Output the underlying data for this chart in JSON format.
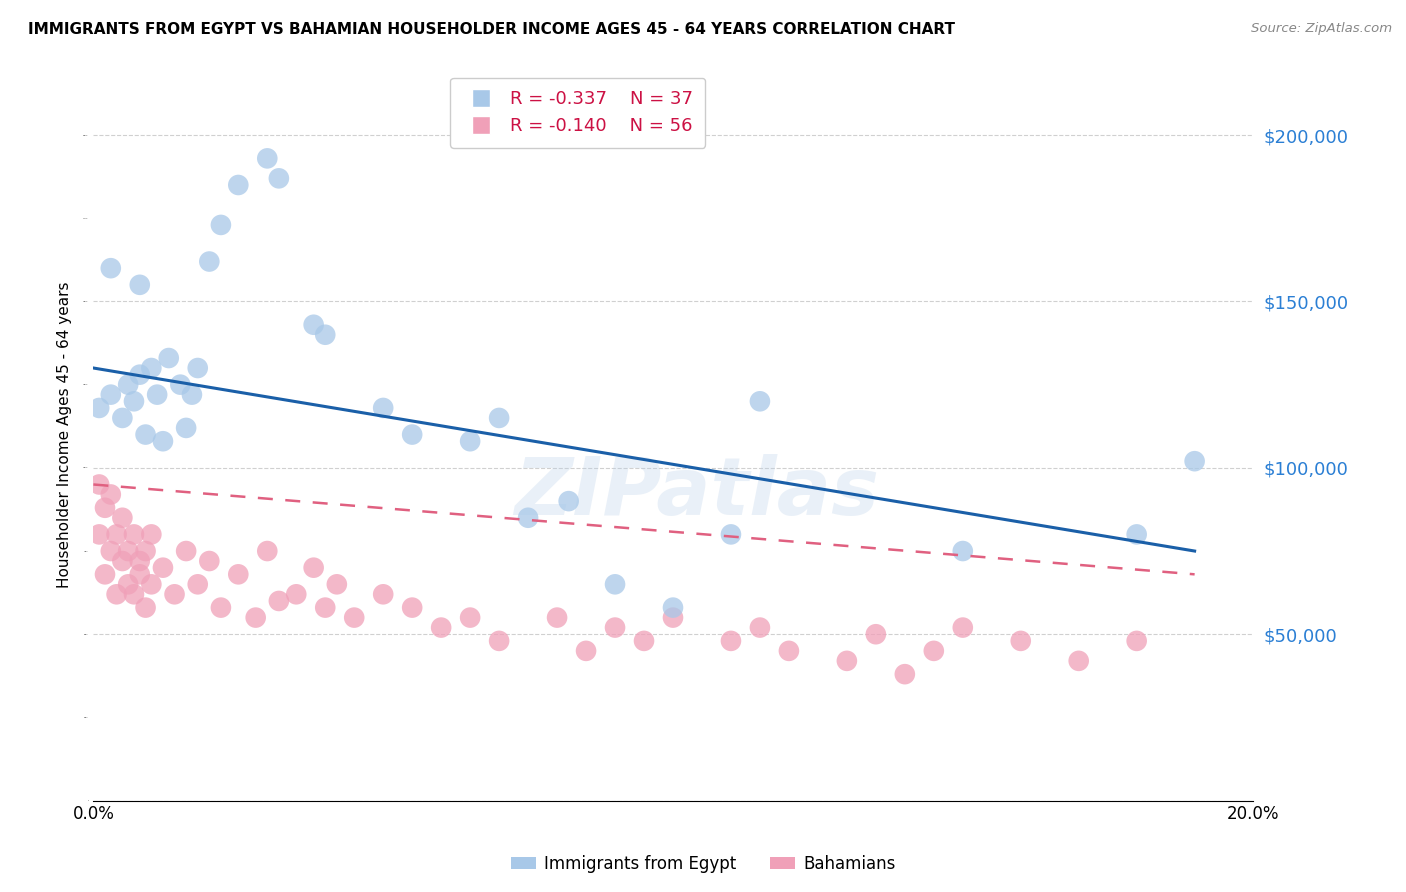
{
  "title": "IMMIGRANTS FROM EGYPT VS BAHAMIAN HOUSEHOLDER INCOME AGES 45 - 64 YEARS CORRELATION CHART",
  "source": "Source: ZipAtlas.com",
  "ylabel": "Householder Income Ages 45 - 64 years",
  "xlim": [
    0.0,
    0.2
  ],
  "ylim": [
    0,
    220000
  ],
  "yticks": [
    0,
    50000,
    100000,
    150000,
    200000
  ],
  "ytick_labels": [
    "",
    "$50,000",
    "$100,000",
    "$150,000",
    "$200,000"
  ],
  "xticks": [
    0.0,
    0.02,
    0.04,
    0.06,
    0.08,
    0.1,
    0.12,
    0.14,
    0.16,
    0.18,
    0.2
  ],
  "xtick_labels": [
    "0.0%",
    "",
    "",
    "",
    "",
    "",
    "",
    "",
    "",
    "",
    "20.0%"
  ],
  "egypt_color": "#a8c8e8",
  "bahamas_color": "#f0a0b8",
  "egypt_line_color": "#1a5fa8",
  "bahamas_line_color": "#e06080",
  "right_axis_color": "#2b7fd4",
  "egypt_r": "-0.337",
  "egypt_n": "37",
  "bahamas_r": "-0.140",
  "bahamas_n": "56",
  "watermark": "ZIPatlas",
  "egypt_x": [
    0.001,
    0.003,
    0.005,
    0.006,
    0.007,
    0.008,
    0.009,
    0.01,
    0.011,
    0.012,
    0.013,
    0.015,
    0.016,
    0.017,
    0.018,
    0.02,
    0.022,
    0.025,
    0.03,
    0.032,
    0.038,
    0.04,
    0.05,
    0.055,
    0.065,
    0.07,
    0.075,
    0.082,
    0.09,
    0.1,
    0.11,
    0.115,
    0.15,
    0.18,
    0.19,
    0.003,
    0.008
  ],
  "egypt_y": [
    118000,
    122000,
    115000,
    125000,
    120000,
    128000,
    110000,
    130000,
    122000,
    108000,
    133000,
    125000,
    112000,
    122000,
    130000,
    162000,
    173000,
    185000,
    193000,
    187000,
    143000,
    140000,
    118000,
    110000,
    108000,
    115000,
    85000,
    90000,
    65000,
    58000,
    80000,
    120000,
    75000,
    80000,
    102000,
    160000,
    155000
  ],
  "bahamas_x": [
    0.001,
    0.001,
    0.002,
    0.002,
    0.003,
    0.003,
    0.004,
    0.004,
    0.005,
    0.005,
    0.006,
    0.006,
    0.007,
    0.007,
    0.008,
    0.008,
    0.009,
    0.009,
    0.01,
    0.01,
    0.012,
    0.014,
    0.016,
    0.018,
    0.02,
    0.022,
    0.025,
    0.028,
    0.03,
    0.032,
    0.035,
    0.038,
    0.04,
    0.042,
    0.045,
    0.05,
    0.055,
    0.06,
    0.065,
    0.07,
    0.08,
    0.085,
    0.09,
    0.095,
    0.1,
    0.11,
    0.115,
    0.12,
    0.13,
    0.135,
    0.14,
    0.145,
    0.15,
    0.16,
    0.17,
    0.18
  ],
  "bahamas_y": [
    95000,
    80000,
    68000,
    88000,
    75000,
    92000,
    62000,
    80000,
    72000,
    85000,
    65000,
    75000,
    80000,
    62000,
    72000,
    68000,
    58000,
    75000,
    65000,
    80000,
    70000,
    62000,
    75000,
    65000,
    72000,
    58000,
    68000,
    55000,
    75000,
    60000,
    62000,
    70000,
    58000,
    65000,
    55000,
    62000,
    58000,
    52000,
    55000,
    48000,
    55000,
    45000,
    52000,
    48000,
    55000,
    48000,
    52000,
    45000,
    42000,
    50000,
    38000,
    45000,
    52000,
    48000,
    42000,
    48000
  ]
}
